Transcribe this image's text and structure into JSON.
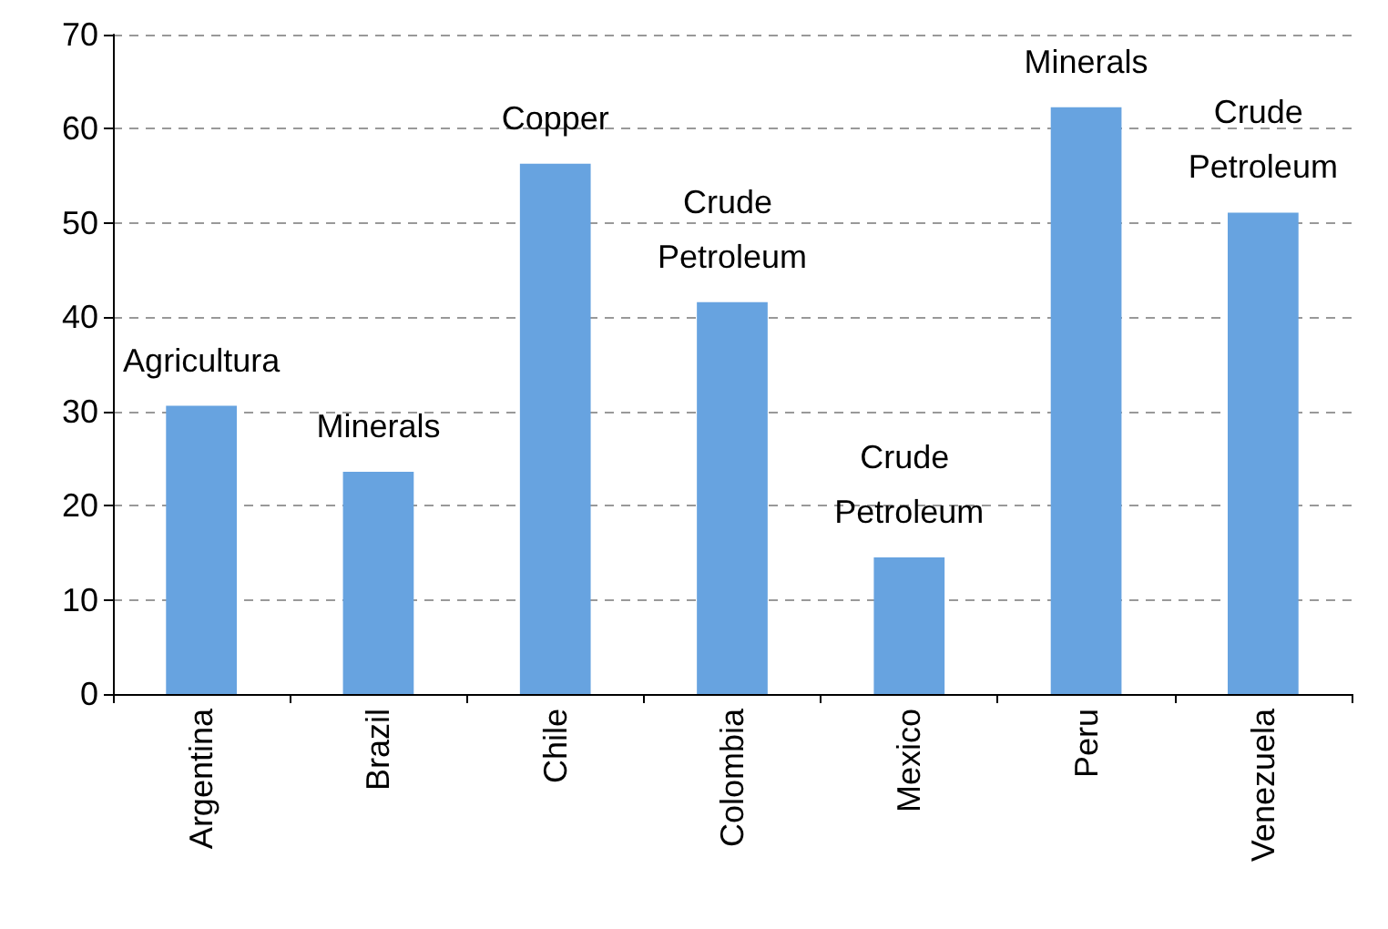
{
  "chart_data": {
    "type": "bar",
    "categories": [
      "Argentina",
      "Brazil",
      "Chile",
      "Colombia",
      "Mexico",
      "Peru",
      "Venezuela"
    ],
    "values": [
      30.6,
      23.6,
      56.3,
      41.6,
      14.5,
      62.3,
      51.1
    ],
    "color": "#67a3e0",
    "ylim": [
      0,
      70
    ],
    "yticks": [
      0,
      10,
      20,
      30,
      40,
      50,
      60,
      70
    ],
    "grid": "y",
    "annotations": [
      {
        "text": "Agricultura",
        "x": "Argentina",
        "y": 30.6
      },
      {
        "text": "Minerals",
        "x": "Brazil",
        "y": 23.6
      },
      {
        "text": "Copper",
        "x": "Chile",
        "y": 56.3
      },
      {
        "text": "Crude Petroleum",
        "x": "Colombia",
        "y": 41.6
      },
      {
        "text": "Crude Petroleum",
        "x": "Mexico",
        "y": 14.5
      },
      {
        "text": "Minerals",
        "x": "Peru",
        "y": 62.3
      },
      {
        "text": "Crude Petroleum",
        "x": "Venezuela",
        "y": 51.1
      }
    ]
  }
}
